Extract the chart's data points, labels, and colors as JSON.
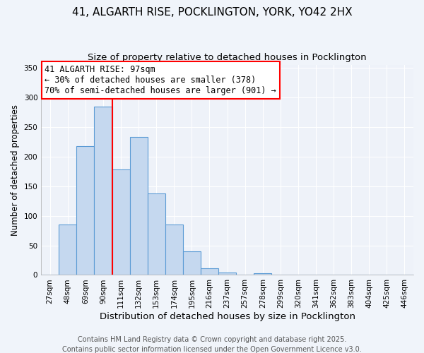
{
  "title": "41, ALGARTH RISE, POCKLINGTON, YORK, YO42 2HX",
  "subtitle": "Size of property relative to detached houses in Pocklington",
  "xlabel": "Distribution of detached houses by size in Pocklington",
  "ylabel": "Number of detached properties",
  "bar_labels": [
    "27sqm",
    "48sqm",
    "69sqm",
    "90sqm",
    "111sqm",
    "132sqm",
    "153sqm",
    "174sqm",
    "195sqm",
    "216sqm",
    "237sqm",
    "257sqm",
    "278sqm",
    "299sqm",
    "320sqm",
    "341sqm",
    "362sqm",
    "383sqm",
    "404sqm",
    "425sqm",
    "446sqm"
  ],
  "bar_values": [
    0,
    85,
    218,
    285,
    178,
    233,
    138,
    85,
    40,
    11,
    4,
    0,
    3,
    0,
    0,
    0,
    0,
    0,
    0,
    0,
    0
  ],
  "bar_color": "#c5d8ef",
  "bar_edgecolor": "#5b9bd5",
  "vline_x_index": 3.5,
  "vline_color": "red",
  "annotation_text": "41 ALGARTH RISE: 97sqm\n← 30% of detached houses are smaller (378)\n70% of semi-detached houses are larger (901) →",
  "annotation_fontsize": 8.5,
  "box_edgecolor": "red",
  "ylim": [
    0,
    355
  ],
  "yticks": [
    0,
    50,
    100,
    150,
    200,
    250,
    300,
    350
  ],
  "footer1": "Contains HM Land Registry data © Crown copyright and database right 2025.",
  "footer2": "Contains public sector information licensed under the Open Government Licence v3.0.",
  "title_fontsize": 11,
  "subtitle_fontsize": 9.5,
  "xlabel_fontsize": 9.5,
  "ylabel_fontsize": 8.5,
  "tick_fontsize": 7.5,
  "footer_fontsize": 7,
  "bg_color": "#f0f4fa",
  "plot_bg_color": "#eef2f9",
  "grid_color": "#ffffff"
}
